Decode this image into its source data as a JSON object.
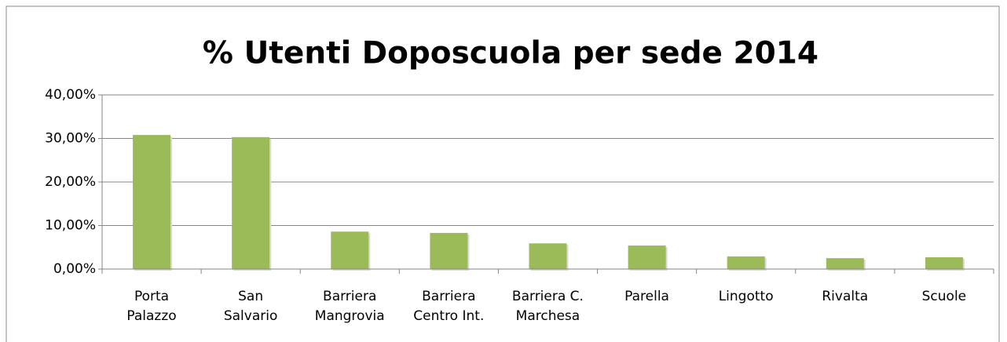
{
  "chart_data": {
    "type": "bar",
    "title": "% Utenti Doposcuola per sede 2014",
    "categories": [
      "Porta\nPalazzo",
      "San\nSalvario",
      "Barriera\nMangrovia",
      "Barriera\nCentro Int.",
      "Barriera C.\nMarchesa",
      "Parella",
      "Lingotto",
      "Rivalta",
      "Scuole"
    ],
    "values": [
      30.8,
      30.3,
      8.6,
      8.3,
      5.9,
      5.4,
      2.9,
      2.5,
      2.7
    ],
    "color": "#9bbb59",
    "ylim": [
      0,
      40
    ],
    "yticks": [
      {
        "value": 0,
        "label": "0,00%"
      },
      {
        "value": 10,
        "label": "10,00%"
      },
      {
        "value": 20,
        "label": "20,00%"
      },
      {
        "value": 30,
        "label": "30,00%"
      },
      {
        "value": 40,
        "label": "40,00%"
      }
    ],
    "grid": true
  }
}
